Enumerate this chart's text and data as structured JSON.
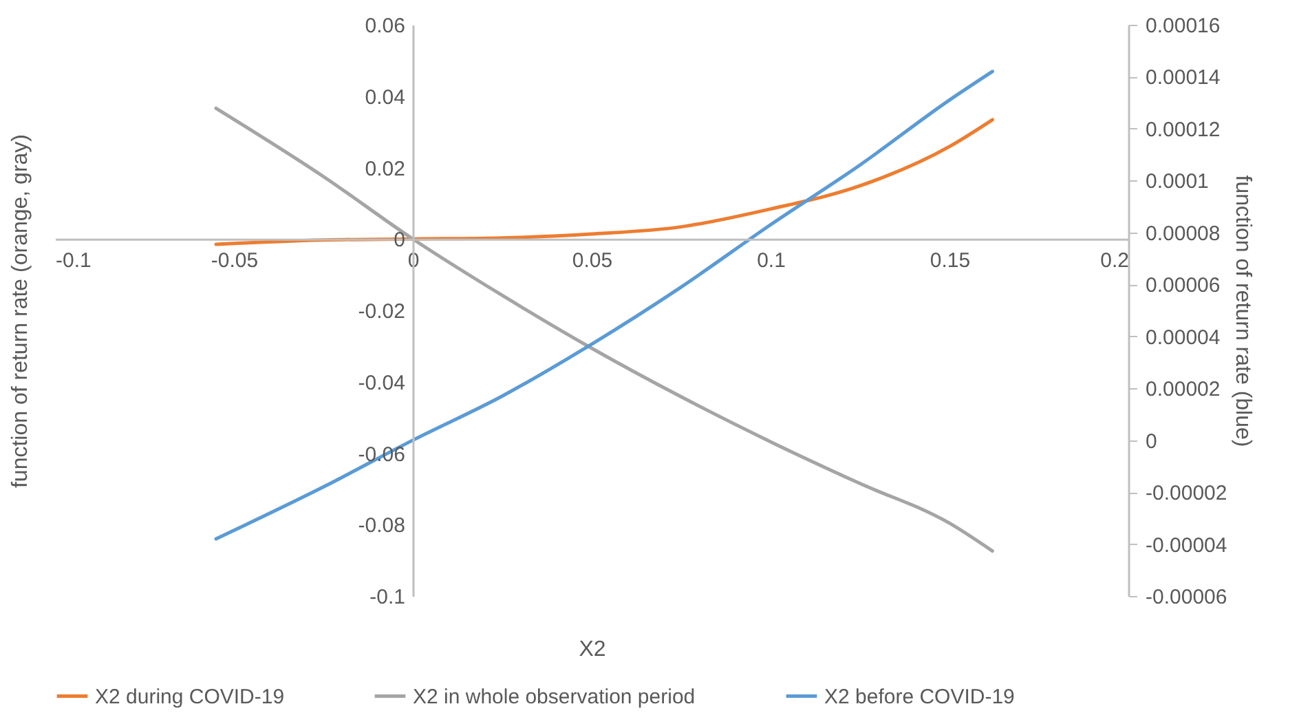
{
  "chart_data": {
    "type": "line",
    "xlabel": "X2",
    "ylabel": "function of return rate (orange, gray)",
    "y2label": "function of return rate (blue)",
    "xlim": [
      -0.1,
      0.2
    ],
    "xticks": [
      -0.1,
      -0.05,
      0,
      0.05,
      0.1,
      0.15,
      0.2
    ],
    "ylim": [
      -0.1,
      0.06
    ],
    "yticks": [
      -0.1,
      -0.08,
      -0.06,
      -0.04,
      -0.02,
      0,
      0.02,
      0.04,
      0.06
    ],
    "y2lim": [
      -6e-05,
      0.00016
    ],
    "y2ticks": [
      {
        "value": -6e-05,
        "label": "-0.00006"
      },
      {
        "value": -4e-05,
        "label": "-0.00004"
      },
      {
        "value": -2e-05,
        "label": "-0.00002"
      },
      0,
      {
        "value": 2e-05,
        "label": "0.00002"
      },
      {
        "value": 4e-05,
        "label": "0.00004"
      },
      {
        "value": 6e-05,
        "label": "0.00006"
      },
      {
        "value": 8e-05,
        "label": "0.00008"
      },
      0.0001,
      0.00012,
      0.00014,
      0.00016
    ],
    "grid": false,
    "legend": "bottom",
    "series": [
      {
        "name": "X2 during COVID-19",
        "color": "#ed7d31",
        "x": [
          -0.055,
          -0.025,
          0,
          0.025,
          0.05,
          0.075,
          0.1,
          0.125,
          0.15,
          0.162
        ],
        "values": [
          -0.0015,
          -0.0003,
          0,
          0.0003,
          0.0014,
          0.0034,
          0.0084,
          0.0149,
          0.0259,
          0.0334
        ]
      },
      {
        "name": "X2 in whole observation period",
        "color": "#a5a5a5",
        "x": [
          -0.055,
          -0.025,
          0,
          0.025,
          0.05,
          0.075,
          0.1,
          0.125,
          0.15,
          0.162
        ],
        "values": [
          0.0366,
          0.0175,
          0,
          -0.0158,
          -0.0306,
          -0.0442,
          -0.0568,
          -0.0685,
          -0.0796,
          -0.0874
        ]
      },
      {
        "name": "X2 before COVID-19",
        "color": "#5b9bd5",
        "axis": "y2",
        "x": [
          -0.055,
          -0.025,
          0,
          0.025,
          0.05,
          0.075,
          0.1,
          0.125,
          0.15,
          0.162
        ],
        "values": [
          -3.8e-05,
          -1.8e-05,
          0,
          1.7e-05,
          3.7e-05,
          5.9e-05,
          8.3e-05,
          0.000106,
          0.000131,
          0.000142
        ]
      }
    ]
  }
}
